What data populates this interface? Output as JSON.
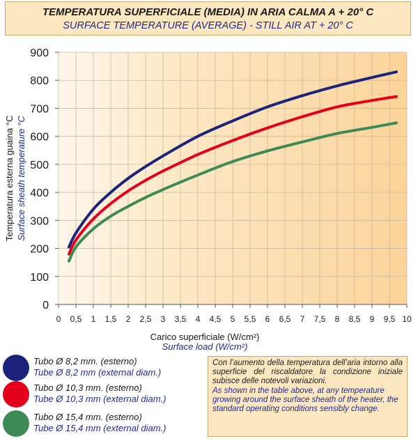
{
  "header": {
    "title_it": "TEMPERATURA SUPERFICIALE (MEDIA)  IN ARIA CALMA  A + 20° C",
    "title_en": "SURFACE TEMPERATURE (AVERAGE) - STILL AIR AT + 20° C"
  },
  "chart_data": {
    "type": "line",
    "xlabel": "Carico superficiale (W/cm²)",
    "xlabel_en": "Surface load (W/cm²)",
    "ylabel": "Temperatura esterna guaina °C",
    "ylabel_en": "Surface sheath temperature °C",
    "xlim": [
      0,
      10
    ],
    "ylim": [
      0,
      900
    ],
    "x_ticks": [
      "0",
      "0,5",
      "1",
      "1,5",
      "2",
      "2,5",
      "3",
      "3,5",
      "4",
      "4,5",
      "5",
      "5,5",
      "6",
      "6,5",
      "7",
      "7,5",
      "8",
      "8,5",
      "9",
      "9,5",
      "10"
    ],
    "y_ticks": [
      "0",
      "100",
      "200",
      "300",
      "400",
      "500",
      "600",
      "700",
      "800",
      "900"
    ],
    "grid": true,
    "series": [
      {
        "name": "Tubo Ø 8,2 mm. (esterno)",
        "color": "#1b237a",
        "x": [
          0.3,
          0.5,
          1,
          1.5,
          2,
          2.5,
          3,
          4,
          5,
          6,
          7,
          8,
          9,
          9.7
        ],
        "y": [
          205,
          255,
          340,
          400,
          450,
          492,
          530,
          600,
          655,
          705,
          745,
          780,
          810,
          830
        ]
      },
      {
        "name": "Tubo Ø 10,3 mm. (esterno)",
        "color": "#e2001a",
        "x": [
          0.3,
          0.5,
          1,
          1.5,
          2,
          2.5,
          3,
          4,
          5,
          6,
          7,
          8,
          9,
          9.7
        ],
        "y": [
          180,
          230,
          305,
          360,
          405,
          443,
          476,
          535,
          585,
          630,
          670,
          705,
          728,
          742
        ]
      },
      {
        "name": "Tubo Ø 15,4 mm. (esterno)",
        "color": "#3d8a55",
        "x": [
          0.3,
          0.5,
          1,
          1.5,
          2,
          2.5,
          3,
          4,
          5,
          6,
          7,
          8,
          9,
          9.7
        ],
        "y": [
          155,
          205,
          270,
          315,
          350,
          382,
          410,
          462,
          510,
          548,
          580,
          610,
          632,
          648
        ]
      }
    ]
  },
  "legend": [
    {
      "it": "Tubo Ø 8,2 mm. (esterno)",
      "en": "Tube Ø 8,2 mm (external diam.)",
      "color": "#1b237a"
    },
    {
      "it": "Tubo Ø 10,3 mm. (esterno)",
      "en": "Tube Ø 10,3 mm (external diam.)",
      "color": "#e2001a"
    },
    {
      "it": "Tubo Ø 15,4 mm. (esterno)",
      "en": "Tube Ø 15,4 mm (external diam.)",
      "color": "#3d8a55"
    }
  ],
  "note": {
    "it": "Con l’aumento della temperatura dell’aria intorno alla superficie del riscaldatore la condizione iniziale subisce delle notevoli variazioni.",
    "en": "As shown in the table above, at any temperature growing around the surface sheath of the heater, the standard operating conditions sensibly change."
  }
}
